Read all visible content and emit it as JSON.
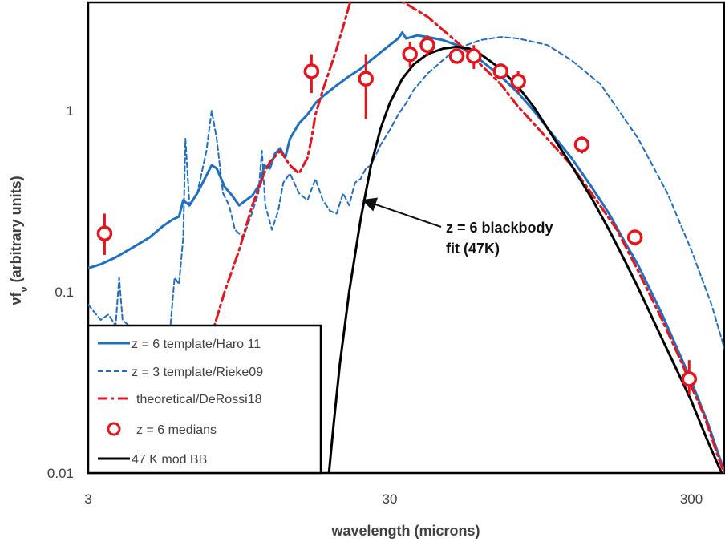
{
  "chart_data": {
    "type": "line",
    "title": "",
    "xlabel": "wavelength (microns)",
    "ylabel_main": "νf",
    "ylabel_sub": "ν",
    "ylabel_rest": " (arbitrary units)",
    "x_scale": "log",
    "y_scale": "log",
    "xlim": [
      3,
      400
    ],
    "ylim": [
      0.01,
      4.5
    ],
    "x_ticks": [
      {
        "value": 3,
        "label": "3"
      },
      {
        "value": 30,
        "label": "30"
      },
      {
        "value": 300,
        "label": "300"
      }
    ],
    "y_ticks": [
      {
        "value": 0.01,
        "label": "0.01"
      },
      {
        "value": 0.1,
        "label": "0.1"
      },
      {
        "value": 1,
        "label": "1"
      }
    ],
    "grid": false,
    "legend_position": "bottom-left",
    "annotation": {
      "lines": [
        "z = 6 blackbody",
        "fit (47K)"
      ],
      "arrow_to": {
        "x": 24.5,
        "y": 0.32
      }
    },
    "series": [
      {
        "name": "z = 6 template/Haro 11",
        "style": "solid",
        "color": "#1f6fc4",
        "points": [
          [
            3,
            0.135
          ],
          [
            3.3,
            0.142
          ],
          [
            3.7,
            0.155
          ],
          [
            4.2,
            0.175
          ],
          [
            4.8,
            0.2
          ],
          [
            5.3,
            0.23
          ],
          [
            5.7,
            0.25
          ],
          [
            6,
            0.26
          ],
          [
            6.2,
            0.32
          ],
          [
            6.5,
            0.3
          ],
          [
            6.9,
            0.35
          ],
          [
            7.3,
            0.42
          ],
          [
            7.7,
            0.5
          ],
          [
            8,
            0.48
          ],
          [
            8.5,
            0.38
          ],
          [
            9,
            0.34
          ],
          [
            9.5,
            0.3
          ],
          [
            10,
            0.32
          ],
          [
            10.5,
            0.34
          ],
          [
            11.2,
            0.4
          ],
          [
            11.5,
            0.5
          ],
          [
            12,
            0.48
          ],
          [
            12.5,
            0.58
          ],
          [
            13,
            0.62
          ],
          [
            13.5,
            0.55
          ],
          [
            14,
            0.7
          ],
          [
            15,
            0.85
          ],
          [
            16,
            0.95
          ],
          [
            17,
            1.1
          ],
          [
            18,
            1.2
          ],
          [
            20,
            1.38
          ],
          [
            22,
            1.55
          ],
          [
            24,
            1.7
          ],
          [
            26,
            1.9
          ],
          [
            28,
            2.1
          ],
          [
            30,
            2.3
          ],
          [
            32,
            2.5
          ],
          [
            33,
            2.7
          ],
          [
            34,
            2.5
          ],
          [
            37,
            2.6
          ],
          [
            40,
            2.55
          ],
          [
            45,
            2.45
          ],
          [
            50,
            2.3
          ],
          [
            55,
            2.1
          ],
          [
            60,
            1.9
          ],
          [
            70,
            1.55
          ],
          [
            80,
            1.25
          ],
          [
            90,
            1.0
          ],
          [
            100,
            0.8
          ],
          [
            120,
            0.55
          ],
          [
            140,
            0.38
          ],
          [
            160,
            0.27
          ],
          [
            180,
            0.19
          ],
          [
            200,
            0.14
          ],
          [
            240,
            0.075
          ],
          [
            280,
            0.042
          ],
          [
            300,
            0.032
          ],
          [
            340,
            0.019
          ],
          [
            380,
            0.011
          ],
          [
            395,
            0.0095
          ]
        ]
      },
      {
        "name": "z = 3 template/Rieke09",
        "style": "dashed",
        "color": "#1f6fc4",
        "points": [
          [
            3,
            0.085
          ],
          [
            3.3,
            0.07
          ],
          [
            3.5,
            0.075
          ],
          [
            3.7,
            0.065
          ],
          [
            3.8,
            0.12
          ],
          [
            3.9,
            0.07
          ],
          [
            4.1,
            0.065
          ],
          [
            4.4,
            0.055
          ],
          [
            4.8,
            0.045
          ],
          [
            5.1,
            0.04
          ],
          [
            5.4,
            0.055
          ],
          [
            5.6,
            0.06
          ],
          [
            5.8,
            0.12
          ],
          [
            6,
            0.11
          ],
          [
            6.2,
            0.2
          ],
          [
            6.3,
            0.7
          ],
          [
            6.5,
            0.3
          ],
          [
            6.9,
            0.35
          ],
          [
            7.4,
            0.6
          ],
          [
            7.7,
            1.0
          ],
          [
            8,
            0.7
          ],
          [
            8.4,
            0.35
          ],
          [
            8.8,
            0.3
          ],
          [
            9.2,
            0.22
          ],
          [
            9.8,
            0.2
          ],
          [
            10.3,
            0.25
          ],
          [
            11,
            0.35
          ],
          [
            11.3,
            0.6
          ],
          [
            11.6,
            0.3
          ],
          [
            12.2,
            0.22
          ],
          [
            12.8,
            0.28
          ],
          [
            13.3,
            0.4
          ],
          [
            14,
            0.45
          ],
          [
            15,
            0.35
          ],
          [
            16,
            0.32
          ],
          [
            17,
            0.42
          ],
          [
            18,
            0.32
          ],
          [
            19,
            0.28
          ],
          [
            20,
            0.27
          ],
          [
            21,
            0.35
          ],
          [
            22,
            0.3
          ],
          [
            23,
            0.4
          ],
          [
            24,
            0.42
          ],
          [
            25,
            0.48
          ],
          [
            26,
            0.5
          ],
          [
            28,
            0.65
          ],
          [
            30,
            0.78
          ],
          [
            32,
            0.95
          ],
          [
            34,
            1.1
          ],
          [
            36,
            1.3
          ],
          [
            40,
            1.6
          ],
          [
            45,
            1.9
          ],
          [
            50,
            2.2
          ],
          [
            60,
            2.45
          ],
          [
            70,
            2.55
          ],
          [
            80,
            2.5
          ],
          [
            100,
            2.3
          ],
          [
            120,
            1.9
          ],
          [
            150,
            1.4
          ],
          [
            200,
            0.7
          ],
          [
            250,
            0.35
          ],
          [
            300,
            0.17
          ],
          [
            350,
            0.085
          ],
          [
            400,
            0.04
          ]
        ]
      },
      {
        "name": "theoretical/DeRossi18",
        "style": "dashdot",
        "color": "#e8141b",
        "points": [
          [
            6.2,
            0.0095
          ],
          [
            7,
            0.025
          ],
          [
            7.5,
            0.05
          ],
          [
            8.5,
            0.1
          ],
          [
            9.5,
            0.17
          ],
          [
            10.5,
            0.3
          ],
          [
            11.5,
            0.45
          ],
          [
            12,
            0.52
          ],
          [
            13,
            0.6
          ],
          [
            14,
            0.5
          ],
          [
            15,
            0.45
          ],
          [
            16,
            0.55
          ],
          [
            16.5,
            0.7
          ],
          [
            17,
            0.95
          ],
          [
            18,
            1.3
          ],
          [
            19,
            1.7
          ],
          [
            20,
            2.2
          ],
          [
            21,
            2.9
          ],
          [
            22,
            3.8
          ],
          [
            23,
            4.7
          ],
          [
            33,
            4.0
          ],
          [
            40,
            3.3
          ],
          [
            50,
            2.4
          ],
          [
            60,
            1.8
          ],
          [
            70,
            1.4
          ],
          [
            80,
            1.05
          ],
          [
            100,
            0.7
          ],
          [
            120,
            0.5
          ],
          [
            140,
            0.35
          ],
          [
            170,
            0.22
          ],
          [
            200,
            0.13
          ],
          [
            240,
            0.07
          ],
          [
            280,
            0.04
          ],
          [
            300,
            0.03
          ],
          [
            330,
            0.021
          ],
          [
            370,
            0.012
          ],
          [
            390,
            0.0095
          ]
        ]
      },
      {
        "name": "47 K mod BB",
        "style": "solid",
        "color": "#000000",
        "points": [
          [
            18.8,
            0.0095
          ],
          [
            19.5,
            0.018
          ],
          [
            20.5,
            0.04
          ],
          [
            22,
            0.1
          ],
          [
            24,
            0.25
          ],
          [
            26,
            0.5
          ],
          [
            28,
            0.8
          ],
          [
            30,
            1.1
          ],
          [
            33,
            1.5
          ],
          [
            36,
            1.8
          ],
          [
            40,
            2.05
          ],
          [
            45,
            2.2
          ],
          [
            50,
            2.25
          ],
          [
            55,
            2.2
          ],
          [
            60,
            2.05
          ],
          [
            70,
            1.7
          ],
          [
            80,
            1.35
          ],
          [
            90,
            1.05
          ],
          [
            100,
            0.8
          ],
          [
            120,
            0.5
          ],
          [
            140,
            0.33
          ],
          [
            160,
            0.22
          ],
          [
            180,
            0.15
          ],
          [
            200,
            0.105
          ],
          [
            240,
            0.055
          ],
          [
            280,
            0.032
          ],
          [
            300,
            0.025
          ],
          [
            340,
            0.015
          ],
          [
            380,
            0.0098
          ]
        ]
      }
    ],
    "medians": {
      "name": "z = 6 medians",
      "color": "#e8141b",
      "points": [
        {
          "x": 3.4,
          "y": 0.21,
          "lo": 0.16,
          "hi": 0.27
        },
        {
          "x": 16.5,
          "y": 1.65,
          "lo": 1.25,
          "hi": 2.05
        },
        {
          "x": 25,
          "y": 1.5,
          "lo": 0.9,
          "hi": 2.05
        },
        {
          "x": 35,
          "y": 2.05,
          "lo": 1.75,
          "hi": 2.4
        },
        {
          "x": 40,
          "y": 2.3,
          "lo": 2.0,
          "hi": 2.6
        },
        {
          "x": 50,
          "y": 2.0,
          "lo": 1.85,
          "hi": 2.15
        },
        {
          "x": 57,
          "y": 2.0,
          "lo": 1.7,
          "hi": 2.3
        },
        {
          "x": 70,
          "y": 1.65,
          "lo": 1.5,
          "hi": 1.8
        },
        {
          "x": 80,
          "y": 1.45,
          "lo": 1.25,
          "hi": 1.65
        },
        {
          "x": 130,
          "y": 0.65,
          "lo": 0.58,
          "hi": 0.72
        },
        {
          "x": 195,
          "y": 0.2,
          "lo": 0.18,
          "hi": 0.22
        },
        {
          "x": 295,
          "y": 0.033,
          "lo": 0.027,
          "hi": 0.042
        }
      ]
    }
  }
}
